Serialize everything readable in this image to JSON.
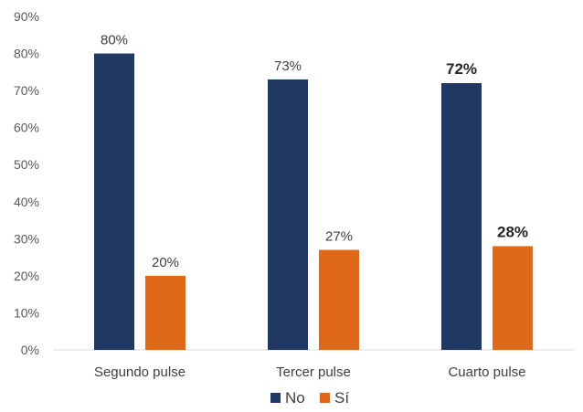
{
  "chart_data": {
    "type": "bar",
    "categories": [
      "Segundo pulse",
      "Tercer pulse",
      "Cuarto pulse"
    ],
    "series": [
      {
        "name": "No",
        "values": [
          80,
          73,
          72
        ],
        "labels": [
          "80%",
          "73%",
          "72%"
        ],
        "color": "#203864"
      },
      {
        "name": "Sí",
        "values": [
          20,
          27,
          28
        ],
        "labels": [
          "20%",
          "27%",
          "28%"
        ],
        "color": "#E06919"
      }
    ],
    "bold_labels_category_index": 2,
    "ylim": [
      0,
      90
    ],
    "yticks": [
      "0%",
      "10%",
      "20%",
      "30%",
      "40%",
      "50%",
      "60%",
      "70%",
      "80%",
      "90%"
    ],
    "grid": false,
    "legend_position": "bottom",
    "title": "",
    "xlabel": "",
    "ylabel": ""
  }
}
